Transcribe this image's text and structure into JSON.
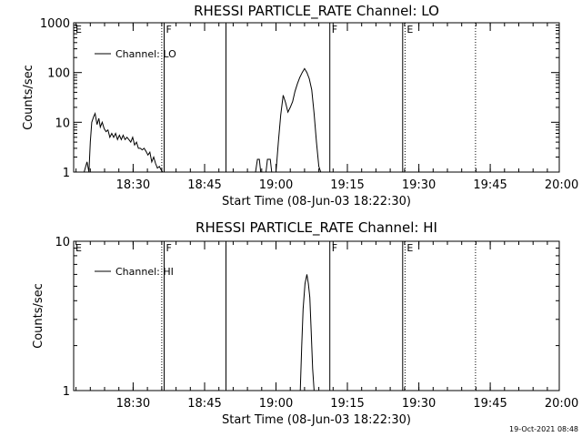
{
  "stamp": "19-Oct-2021 08:48",
  "chart_data": [
    {
      "type": "line",
      "title": "RHESSI PARTICLE_RATE Channel: LO",
      "xlabel": "Start Time (08-Jun-03 18:22:30)",
      "ylabel": "Counts/sec",
      "yscale": "log",
      "ylim": [
        1,
        1000
      ],
      "xlim": [
        -5,
        97
      ],
      "x_unit": "minutes after 18:22:30",
      "yticks": [
        {
          "v": 1,
          "label": "1"
        },
        {
          "v": 10,
          "label": "10"
        },
        {
          "v": 100,
          "label": "100"
        },
        {
          "v": 1000,
          "label": "1000"
        }
      ],
      "xticks": [
        {
          "v": 7.5,
          "label": "18:30"
        },
        {
          "v": 22.5,
          "label": "18:45"
        },
        {
          "v": 37.5,
          "label": "19:00"
        },
        {
          "v": 52.5,
          "label": "19:15"
        },
        {
          "v": 67.5,
          "label": "19:30"
        },
        {
          "v": 82.5,
          "label": "19:45"
        },
        {
          "v": 97.5,
          "label": "20:00"
        }
      ],
      "legend": {
        "position": "top-left",
        "entries": [
          "Channel: LO"
        ]
      },
      "markers": [
        {
          "x": -5,
          "style": "dotted",
          "label": "E"
        },
        {
          "x": 13.5,
          "style": "dotted",
          "label": ""
        },
        {
          "x": 14,
          "style": "solid",
          "label": "F"
        },
        {
          "x": 27,
          "style": "solid",
          "label": ""
        },
        {
          "x": 48.8,
          "style": "solid",
          "label": "F"
        },
        {
          "x": 64.1,
          "style": "solid",
          "label": ""
        },
        {
          "x": 64.6,
          "style": "dotted",
          "label": "E"
        },
        {
          "x": 79.4,
          "style": "dotted",
          "label": ""
        }
      ],
      "series": [
        {
          "segments": [
            {
              "x": [
                -2.8,
                -2.2,
                -1.8,
                -1.5,
                -1.2,
                -0.8,
                -0.5,
                -0.1,
                0.3,
                0.6,
                1.0,
                1.4,
                1.8,
                2.2,
                2.6,
                3.0,
                3.4,
                3.8,
                4.2,
                4.6,
                5.0,
                5.4,
                5.8,
                6.2,
                6.6,
                7.0,
                7.4,
                7.8,
                8.2,
                8.6,
                9.0,
                9.4,
                9.8,
                10.2,
                10.6,
                11.0,
                11.4,
                11.8,
                12.2,
                12.6,
                13.0,
                13.4,
                13.7
              ],
              "y": [
                1,
                1.6,
                1,
                4,
                10,
                13,
                15,
                9,
                12,
                8,
                10,
                7.5,
                6.5,
                7,
                5,
                6,
                5,
                6,
                4.5,
                5.5,
                4.5,
                5.5,
                4.5,
                5,
                4.5,
                4,
                5,
                3.5,
                4,
                3,
                3,
                2.8,
                3,
                2.6,
                2.2,
                2.5,
                1.6,
                2,
                1.5,
                1.2,
                1.3,
                1.1,
                1
              ]
            },
            {
              "x": [
                33,
                33.2,
                33.6,
                34,
                34.3,
                34.6
              ],
              "y": [
                1,
                1,
                1.8,
                1.8,
                1,
                1
              ]
            },
            {
              "x": [
                35.4,
                35.7,
                36,
                36.3,
                36.6
              ],
              "y": [
                1,
                1.8,
                1.8,
                1.8,
                1
              ]
            },
            {
              "x": [
                37.5,
                38,
                38.5,
                39,
                39.5,
                40,
                40.5,
                41,
                41.5,
                42,
                42.5,
                43,
                43.5,
                44,
                44.5,
                45,
                45.5,
                46,
                46.5,
                46.9
              ],
              "y": [
                1,
                4,
                14,
                35,
                25,
                16,
                20,
                26,
                42,
                60,
                80,
                100,
                120,
                100,
                75,
                45,
                15,
                4,
                1.3,
                1
              ]
            }
          ]
        }
      ]
    },
    {
      "type": "line",
      "title": "RHESSI PARTICLE_RATE Channel: HI",
      "xlabel": "Start Time (08-Jun-03 18:22:30)",
      "ylabel": "Counts/sec",
      "yscale": "log",
      "ylim": [
        1,
        10
      ],
      "xlim": [
        -5,
        97
      ],
      "x_unit": "minutes after 18:22:30",
      "yticks": [
        {
          "v": 1,
          "label": "1"
        },
        {
          "v": 10,
          "label": "10"
        }
      ],
      "xticks": [
        {
          "v": 7.5,
          "label": "18:30"
        },
        {
          "v": 22.5,
          "label": "18:45"
        },
        {
          "v": 37.5,
          "label": "19:00"
        },
        {
          "v": 52.5,
          "label": "19:15"
        },
        {
          "v": 67.5,
          "label": "19:30"
        },
        {
          "v": 82.5,
          "label": "19:45"
        },
        {
          "v": 97.5,
          "label": "20:00"
        }
      ],
      "legend": {
        "position": "top-left",
        "entries": [
          "Channel: HI"
        ]
      },
      "markers": [
        {
          "x": -5,
          "style": "dotted",
          "label": "E"
        },
        {
          "x": 13.5,
          "style": "dotted",
          "label": ""
        },
        {
          "x": 14,
          "style": "solid",
          "label": "F"
        },
        {
          "x": 27,
          "style": "solid",
          "label": ""
        },
        {
          "x": 48.8,
          "style": "solid",
          "label": "F"
        },
        {
          "x": 64.1,
          "style": "solid",
          "label": ""
        },
        {
          "x": 64.6,
          "style": "dotted",
          "label": "E"
        },
        {
          "x": 79.4,
          "style": "dotted",
          "label": ""
        }
      ],
      "series": [
        {
          "segments": [
            {
              "x": [
                42.6,
                42.9,
                43.2,
                43.6,
                44.0,
                44.3,
                44.6,
                44.9,
                45.2,
                45.5
              ],
              "y": [
                1,
                2,
                3.5,
                5.2,
                6,
                5.2,
                4.2,
                2.5,
                1.4,
                1
              ]
            }
          ]
        }
      ]
    }
  ]
}
